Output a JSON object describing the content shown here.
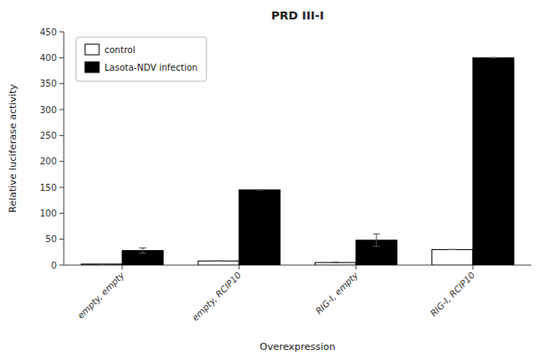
{
  "chart_data": {
    "type": "bar",
    "title": "PRD III-I",
    "xlabel": "Overexpression",
    "ylabel": "Relative luciferase activity",
    "categories": [
      "empty, empty",
      "empty, RCIP10",
      "RIG-I, empty",
      "RIG-I, RCIP10"
    ],
    "series": [
      {
        "name": "control",
        "color": "#ffffff",
        "values": [
          2,
          8,
          5,
          30
        ],
        "errors": [
          0,
          0,
          0,
          0
        ]
      },
      {
        "name": "Lasota-NDV infection",
        "color": "#000000",
        "values": [
          28,
          145,
          48,
          400
        ],
        "errors": [
          5,
          0,
          12,
          0
        ]
      }
    ],
    "ylim": [
      0,
      450
    ],
    "yticks": [
      0,
      50,
      100,
      150,
      200,
      250,
      300,
      350,
      400,
      450
    ],
    "grid": false,
    "legend": "upper left"
  }
}
